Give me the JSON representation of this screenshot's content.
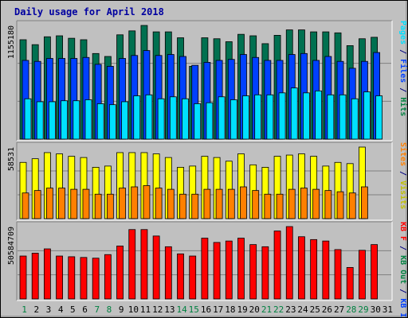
{
  "chart_data": {
    "type": "bar",
    "title": "Daily usage for April 2018",
    "days": [
      "1",
      "2",
      "3",
      "4",
      "5",
      "6",
      "7",
      "8",
      "9",
      "10",
      "11",
      "12",
      "13",
      "14",
      "15",
      "16",
      "17",
      "18",
      "19",
      "20",
      "21",
      "22",
      "23",
      "24",
      "25",
      "26",
      "27",
      "28",
      "29",
      "30",
      "31"
    ],
    "weekend_days": [
      1,
      7,
      8,
      14,
      15,
      21,
      22,
      28,
      29
    ],
    "panels": [
      {
        "id": "top",
        "ymax_label": "1155180",
        "ymax": 1155180,
        "right_labels": [
          {
            "text": "Hits",
            "color": "#008040"
          },
          {
            "text": " / ",
            "color": "#000080"
          },
          {
            "text": "Files",
            "color": "#0040ff"
          },
          {
            "text": " / ",
            "color": "#000080"
          },
          {
            "text": "Pages",
            "color": "#00e0ff"
          }
        ],
        "series": [
          {
            "name": "Hits",
            "color": "#007050",
            "values": [
              1010000,
              960000,
              1040000,
              1050000,
              1025000,
              1010000,
              870000,
              840000,
              1060000,
              1100000,
              1155180,
              1090000,
              1090000,
              1030000,
              740000,
              1030000,
              1020000,
              990000,
              1065000,
              1050000,
              970000,
              1055000,
              1110000,
              1110000,
              1090000,
              1090000,
              1080000,
              950000,
              1020000,
              1035000,
              null
            ]
          },
          {
            "name": "Files",
            "color": "#0040ff",
            "values": [
              800000,
              790000,
              820000,
              820000,
              820000,
              830000,
              760000,
              740000,
              820000,
              850000,
              900000,
              850000,
              860000,
              840000,
              750000,
              780000,
              800000,
              810000,
              860000,
              830000,
              800000,
              800000,
              860000,
              870000,
              800000,
              840000,
              790000,
              720000,
              790000,
              880000,
              null
            ]
          },
          {
            "name": "Pages",
            "color": "#00e0ff",
            "values": [
              410000,
              380000,
              380000,
              390000,
              390000,
              400000,
              360000,
              350000,
              380000,
              440000,
              450000,
              410000,
              430000,
              410000,
              360000,
              370000,
              430000,
              400000,
              440000,
              450000,
              450000,
              470000,
              520000,
              470000,
              490000,
              450000,
              450000,
              410000,
              480000,
              440000,
              null
            ]
          }
        ]
      },
      {
        "id": "mid",
        "ymax_label": "58531",
        "ymax": 58531,
        "right_labels": [
          {
            "text": "Visits",
            "color": "#c0c000"
          },
          {
            "text": " / ",
            "color": "#000080"
          },
          {
            "text": "Sites",
            "color": "#ff8000"
          }
        ],
        "series": [
          {
            "name": "Visits",
            "color": "#ffff00",
            "values": [
              46000,
              49000,
              54000,
              53000,
              51000,
              50000,
              42000,
              43000,
              54000,
              54000,
              54000,
              53000,
              50000,
              42000,
              43000,
              51000,
              50000,
              47000,
              53000,
              44000,
              42000,
              51000,
              52000,
              53000,
              51000,
              43000,
              46000,
              45000,
              58531,
              null,
              null
            ]
          },
          {
            "name": "Sites",
            "color": "#ff8000",
            "values": [
              21000,
              23000,
              25000,
              25000,
              24000,
              24000,
              20000,
              20000,
              25000,
              26000,
              27000,
              25000,
              24000,
              20000,
              20000,
              24000,
              24000,
              24000,
              26000,
              23000,
              20000,
              20000,
              24000,
              25000,
              24000,
              23000,
              22000,
              21000,
              26000,
              null,
              null
            ]
          }
        ]
      },
      {
        "id": "bot",
        "ymax_label": "50584709",
        "ymax": 50584709,
        "right_labels": [
          {
            "text": "KB In",
            "color": "#0040ff"
          },
          {
            "text": " / ",
            "color": "#000080"
          },
          {
            "text": "KB Out",
            "color": "#008040"
          },
          {
            "text": " / ",
            "color": "#000080"
          },
          {
            "text": "KB F",
            "color": "#ff0000"
          }
        ],
        "series": [
          {
            "name": "KB F",
            "color": "#ff0000",
            "values": [
              30000000,
              32000000,
              35000000,
              30000000,
              29500000,
              29000000,
              28500000,
              31000000,
              37000000,
              48500000,
              48500000,
              44000000,
              36500000,
              31500000,
              30000000,
              42500000,
              39500000,
              40500000,
              42500000,
              38000000,
              36500000,
              47500000,
              50584709,
              43500000,
              41500000,
              40500000,
              34500000,
              22000000,
              34000000,
              38000000,
              null
            ]
          }
        ]
      }
    ]
  }
}
